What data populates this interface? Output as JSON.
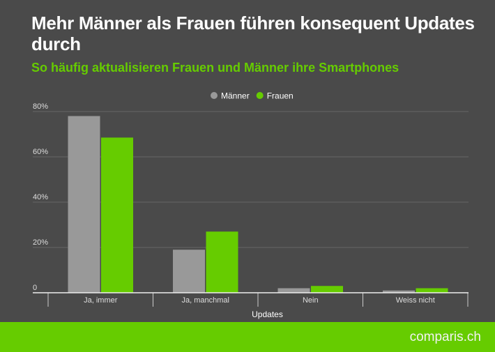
{
  "chart_data": {
    "type": "bar",
    "title": "Mehr Männer als Frauen führen konsequent Updates durch",
    "subtitle": "So häufig aktualisieren Frauen und Männer ihre Smartphones",
    "xlabel": "Updates",
    "ylabel": "",
    "categories": [
      "Ja, immer",
      "Ja, manchmal",
      "Nein",
      "Weiss nicht"
    ],
    "series": [
      {
        "name": "Männer",
        "color": "#999999",
        "values": [
          78,
          19,
          2,
          1
        ]
      },
      {
        "name": "Frauen",
        "color": "#66cc00",
        "values": [
          68.5,
          27,
          3,
          2
        ]
      }
    ],
    "ylim": [
      0,
      80
    ],
    "yticks": [
      0,
      20,
      40,
      60,
      80
    ],
    "ytick_labels": [
      "0",
      "20%",
      "40%",
      "60%",
      "80%"
    ],
    "grid": true,
    "legend_position": "top-center"
  },
  "footer": {
    "logo": "comparis.ch",
    "color": "#66cc00"
  }
}
